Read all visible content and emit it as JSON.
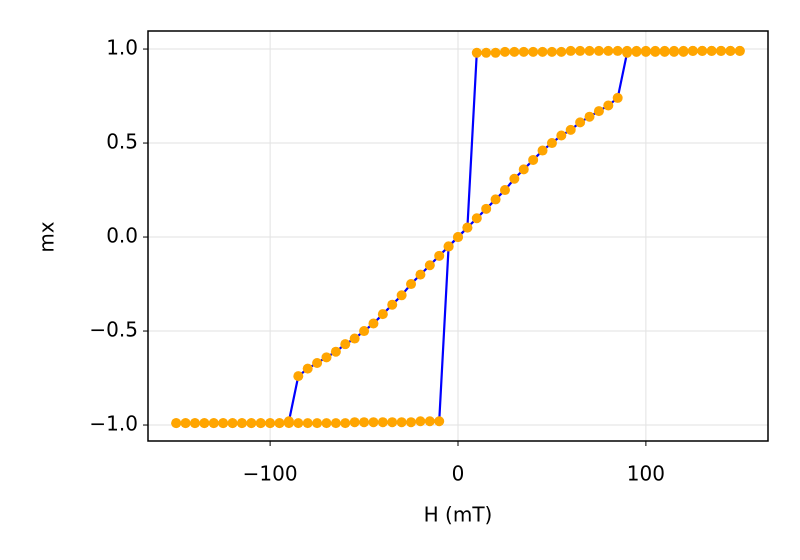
{
  "chart_data": {
    "type": "line",
    "x_label": "H (mT)",
    "y_label": "mx",
    "x": [
      -150,
      -145,
      -140,
      -135,
      -130,
      -125,
      -120,
      -115,
      -110,
      -105,
      -100,
      -95,
      -90,
      -85,
      -80,
      -75,
      -70,
      -65,
      -60,
      -55,
      -50,
      -45,
      -40,
      -35,
      -30,
      -25,
      -20,
      -15,
      -10,
      -5,
      0,
      5,
      10,
      15,
      20,
      25,
      30,
      35,
      40,
      45,
      50,
      55,
      60,
      65,
      70,
      75,
      80,
      85,
      90,
      95,
      100,
      105,
      110,
      115,
      120,
      125,
      130,
      135,
      140,
      145,
      150
    ],
    "series": [
      {
        "color": "#0000ff",
        "marker_color": "#ffa500",
        "values": [
          -0.99,
          -0.99,
          -0.99,
          -0.99,
          -0.99,
          -0.99,
          -0.99,
          -0.99,
          -0.99,
          -0.99,
          -0.99,
          -0.99,
          -0.98,
          -0.74,
          -0.7,
          -0.67,
          -0.64,
          -0.61,
          -0.57,
          -0.54,
          -0.5,
          -0.46,
          -0.41,
          -0.36,
          -0.31,
          -0.25,
          -0.2,
          -0.15,
          -0.1,
          -0.05,
          0,
          0.05,
          0.98,
          0.98,
          0.98,
          0.985,
          0.985,
          0.985,
          0.985,
          0.985,
          0.985,
          0.985,
          0.99,
          0.99,
          0.99,
          0.99,
          0.99,
          0.99,
          0.99,
          0.99,
          0.99,
          0.99,
          0.99,
          0.99,
          0.99,
          0.99,
          0.99,
          0.99,
          0.99,
          0.99,
          0.99
        ]
      },
      {
        "color": "#0000ff",
        "marker_color": "#ffa500",
        "values": [
          -0.99,
          -0.99,
          -0.99,
          -0.99,
          -0.99,
          -0.99,
          -0.99,
          -0.99,
          -0.99,
          -0.99,
          -0.99,
          -0.99,
          -0.99,
          -0.99,
          -0.99,
          -0.99,
          -0.99,
          -0.99,
          -0.99,
          -0.985,
          -0.985,
          -0.985,
          -0.985,
          -0.985,
          -0.985,
          -0.985,
          -0.98,
          -0.98,
          -0.98,
          -0.05,
          0,
          0.05,
          0.1,
          0.15,
          0.2,
          0.25,
          0.31,
          0.36,
          0.41,
          0.46,
          0.5,
          0.54,
          0.57,
          0.61,
          0.64,
          0.67,
          0.7,
          0.74,
          0.98,
          0.985,
          0.985,
          0.985,
          0.985,
          0.985,
          0.985,
          0.99,
          0.99,
          0.99,
          0.99,
          0.99,
          0.99
        ]
      }
    ],
    "xlim": [
      -165,
      165
    ],
    "ylim": [
      -1.085,
      1.096
    ],
    "xticks": [
      {
        "value": -100,
        "label": "−100"
      },
      0,
      100
    ],
    "yticks": [
      {
        "value": -1.0,
        "label": "−1.0"
      },
      {
        "value": -0.5,
        "label": "−0.5"
      },
      {
        "value": 0,
        "label": "0.0"
      },
      {
        "value": 0.5,
        "label": "0.5"
      },
      {
        "value": 1.0,
        "label": "1.0"
      }
    ],
    "grid": true
  }
}
